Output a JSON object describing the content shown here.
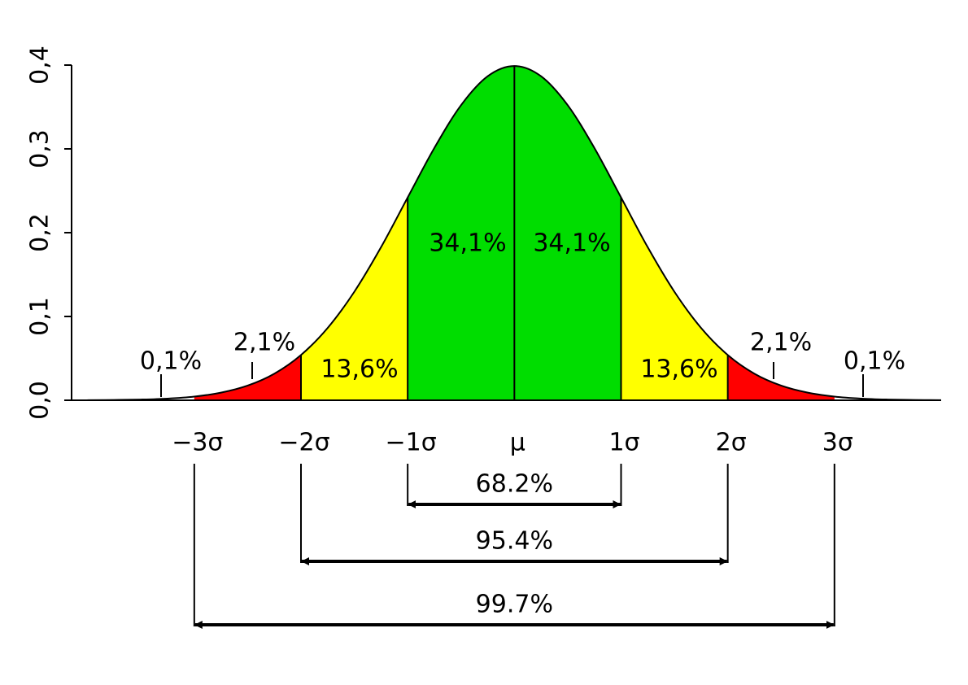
{
  "chart_data": {
    "type": "normal-curve",
    "xlim": [
      -4.15,
      4.0
    ],
    "ylim": [
      0,
      0.4
    ],
    "xticks": [
      {
        "value": -3,
        "label": "−3σ"
      },
      {
        "value": -2,
        "label": "−2σ"
      },
      {
        "value": -1,
        "label": "−1σ"
      },
      {
        "value": 0,
        "label": "μ"
      },
      {
        "value": 1,
        "label": "1σ"
      },
      {
        "value": 2,
        "label": "2σ"
      },
      {
        "value": 3,
        "label": "3σ"
      }
    ],
    "yticks": [
      {
        "value": 0,
        "label": "0,0"
      },
      {
        "value": 0.1,
        "label": "0,1"
      },
      {
        "value": 0.2,
        "label": "0,2"
      },
      {
        "value": 0.3,
        "label": "0,3"
      },
      {
        "value": 0.4,
        "label": "0,4"
      }
    ],
    "x": [
      -4,
      -3.75,
      -3.5,
      -3.25,
      -3,
      -2.75,
      -2.5,
      -2.25,
      -2,
      -1.75,
      -1.5,
      -1.25,
      -1,
      -0.75,
      -0.5,
      -0.25,
      0,
      0.25,
      0.5,
      0.75,
      1,
      1.25,
      1.5,
      1.75,
      2,
      2.25,
      2.5,
      2.75,
      3,
      3.25,
      3.5,
      3.75,
      4
    ],
    "values": [
      0.0001,
      0.0004,
      0.0009,
      0.002,
      0.0044,
      0.0091,
      0.0175,
      0.0317,
      0.054,
      0.0863,
      0.1295,
      0.1826,
      0.242,
      0.3011,
      0.3521,
      0.3867,
      0.3989,
      0.3867,
      0.3521,
      0.3011,
      0.242,
      0.1826,
      0.1295,
      0.0863,
      0.054,
      0.0317,
      0.0175,
      0.0091,
      0.0044,
      0.002,
      0.0009,
      0.0004,
      0.0001
    ],
    "color": "#000000",
    "regions": {
      "from": [
        -4,
        -3,
        -2,
        -1,
        0,
        1,
        2,
        3
      ],
      "to": [
        -3,
        -2,
        -1,
        0,
        1,
        2,
        3,
        4
      ],
      "colors": [
        "none",
        "#ff0000",
        "#ffff00",
        "#00dd00",
        "#00dd00",
        "#ffff00",
        "#ff0000",
        "none"
      ],
      "values": [
        0.1,
        2.1,
        13.6,
        34.1,
        34.1,
        13.6,
        2.1,
        0.1
      ],
      "value_labels": [
        "0,1%",
        "2,1%",
        "13,6%",
        "34,1%",
        "34,1%",
        "13,6%",
        "2,1%",
        "0,1%"
      ]
    },
    "ranges": {
      "from": [
        -1,
        -2,
        -3
      ],
      "to": [
        1,
        2,
        3
      ],
      "values": [
        68.2,
        95.4,
        99.7
      ],
      "value_labels": [
        "68.2%",
        "95.4%",
        "99.7%"
      ]
    }
  }
}
